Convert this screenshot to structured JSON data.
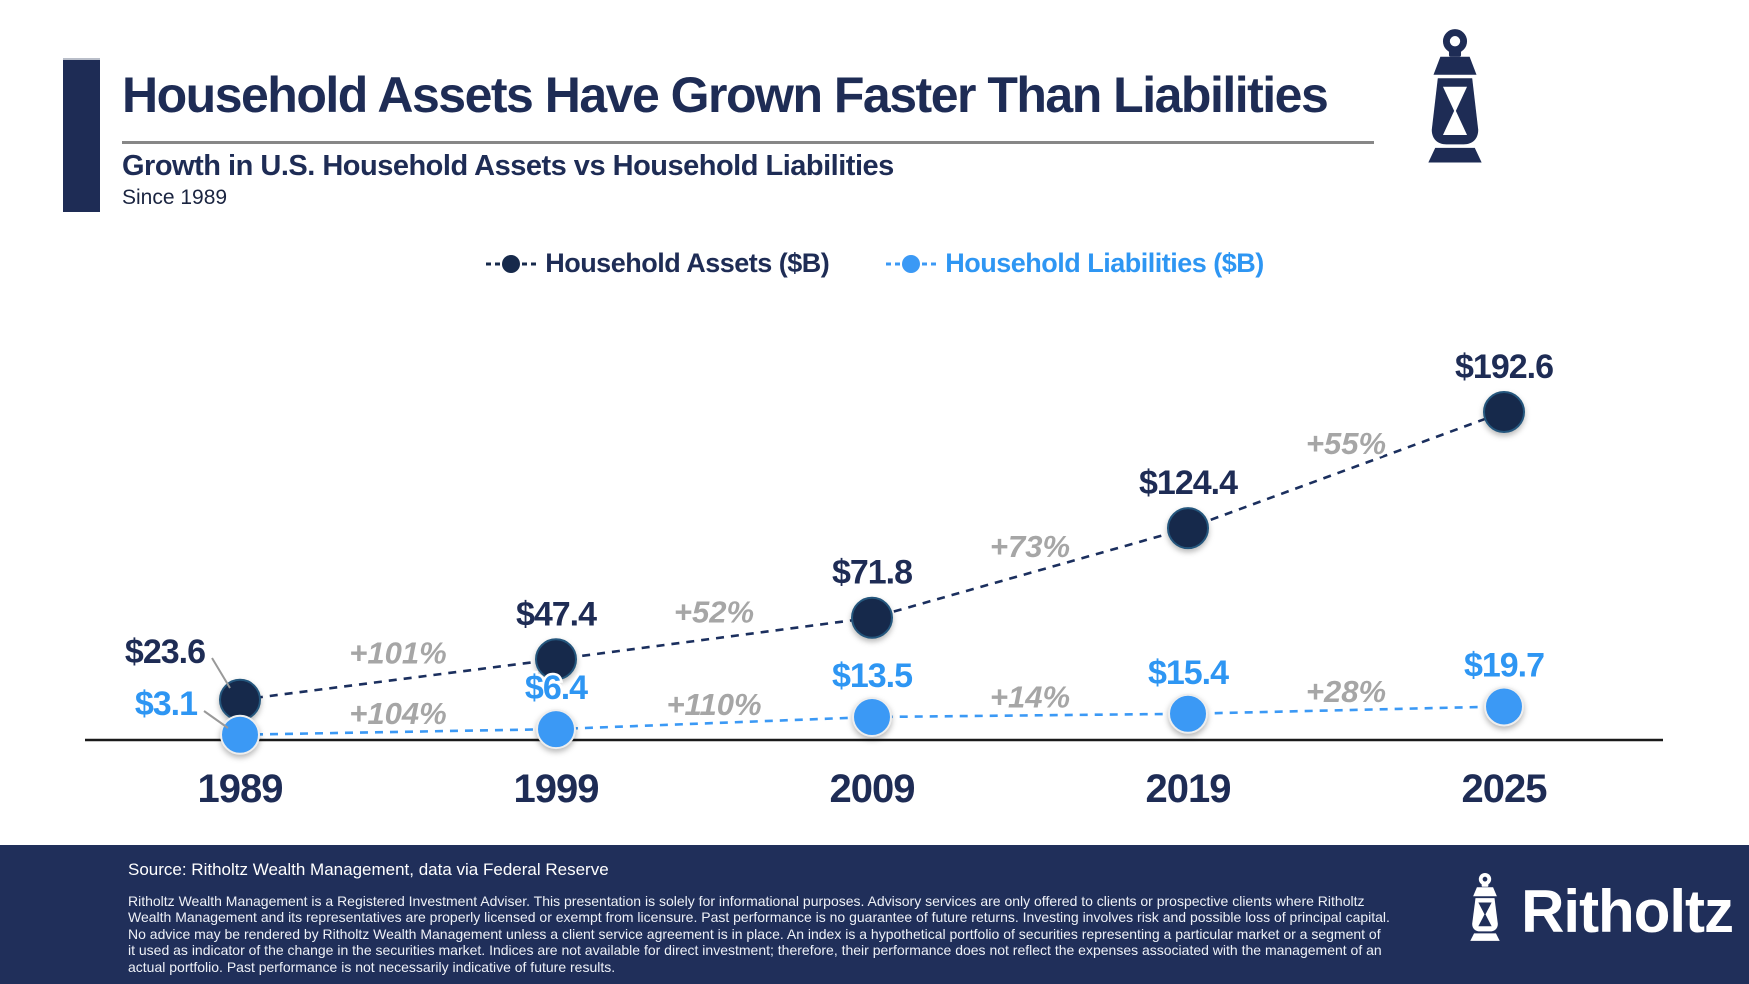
{
  "header": {
    "title": "Household Assets Have Grown Faster Than Liabilities",
    "subtitle": "Growth in U.S. Household Assets vs Household Liabilities",
    "tagline": "Since 1989"
  },
  "legend": {
    "items": [
      {
        "label": "Household Assets ($B)",
        "color": "#16294b",
        "text_color": "#1e2c55"
      },
      {
        "label": "Household Liabilities ($B)",
        "color": "#3b99f5",
        "text_color": "#2e96f3"
      }
    ]
  },
  "chart_data": {
    "type": "line",
    "title": "Household Assets Have Grown Faster Than Liabilities",
    "subtitle": "Growth in U.S. Household Assets vs Household Liabilities",
    "note": "Since 1989",
    "categories": [
      "1989",
      "1999",
      "2009",
      "2019",
      "2025"
    ],
    "series": [
      {
        "name": "Household Assets ($B)",
        "values": [
          23.6,
          47.4,
          71.8,
          124.4,
          192.6
        ],
        "point_labels": [
          "$23.6",
          "$47.4",
          "$71.8",
          "$124.4",
          "$192.6"
        ],
        "segment_growth_labels": [
          "+101%",
          "+52%",
          "+73%",
          "+55%"
        ],
        "color": "#16294b",
        "label_color": "#1e2c55",
        "line_style": "dashed"
      },
      {
        "name": "Household Liabilities ($B)",
        "values": [
          3.1,
          6.4,
          13.5,
          15.4,
          19.7
        ],
        "point_labels": [
          "$3.1",
          "$6.4",
          "$13.5",
          "$15.4",
          "$19.7"
        ],
        "segment_growth_labels": [
          "+104%",
          "+110%",
          "+14%",
          "+28%"
        ],
        "color": "#3b99f5",
        "label_color": "#2e96f3",
        "line_style": "dashed"
      }
    ],
    "ylim": [
      0,
      210
    ],
    "grid": false,
    "legend_position": "top-center",
    "growth_label_color": "#a6a6a6",
    "axis_color": "#1a1a1a",
    "tick_label_color": "#1e2c55",
    "xlabel": "",
    "ylabel": ""
  },
  "footer": {
    "source": "Source: Ritholtz Wealth Management, data via Federal Reserve",
    "disclaimer": "Ritholtz Wealth Management is a Registered Investment Adviser. This presentation is solely for informational purposes. Advisory services are only offered to clients or prospective clients where Ritholtz Wealth Management and its representatives are properly licensed or exempt from licensure. Past performance is no guarantee of future returns. Investing involves risk and possible loss of principal capital. No advice may be rendered by Ritholtz Wealth Management unless a client service agreement is in place. An index is a hypothetical portfolio of securities representing a particular market or a segment of it used as indicator of the change in the securities market. Indices are not available for direct investment; therefore, their performance does not reflect the expenses associated with the management of an actual portfolio. Past performance is not necessarily indicative of future results.",
    "brand": "Ritholtz"
  },
  "colors": {
    "navy": "#1e2c55",
    "dot_navy": "#16294b",
    "blue": "#3b99f5",
    "blue_text": "#2e96f3",
    "growth_gray": "#a6a6a6",
    "footer_bg": "#202f5a",
    "underline_gray": "#878787",
    "leader_gray": "#999999"
  }
}
